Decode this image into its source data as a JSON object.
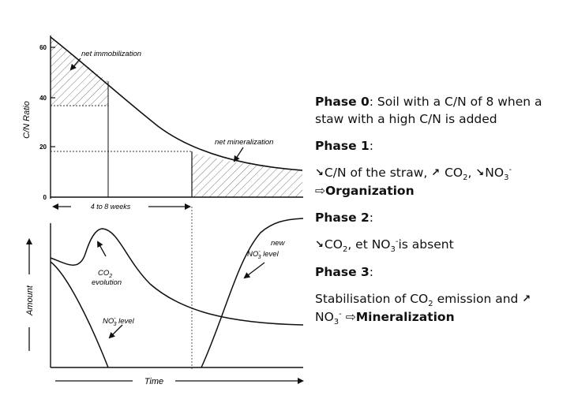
{
  "top_chart": {
    "y_axis_label": "C/N Ratio",
    "y_ticks": [
      "60",
      "40",
      "20",
      "0"
    ],
    "net_immobilization": "net immobilization",
    "net_mineralization": "net mineralization",
    "duration": "4 to 8 weeks"
  },
  "bottom_chart": {
    "y_axis_label": "Amount",
    "x_axis_label": "Time",
    "co2_label": "CO",
    "co2_sub": "2",
    "co2_label_2": "evolution",
    "no3_label_prefix": "NO",
    "no3_sub": "3",
    "no3_sup": "-",
    "no3_label_suffix": "level",
    "new_label": "new",
    "new_no3_prefix": "NO",
    "new_no3_sub": "3",
    "new_no3_sup": "-",
    "new_no3_suffix": "level"
  },
  "phases": {
    "p0_title": "Phase 0",
    "p0_text": ": Soil with a C/N of 8 when a staw with  a high C/N is added",
    "p1_title": "Phase 1",
    "p1_colon": ":",
    "p1_t1": "C/N of the straw, ",
    "p1_co2": "CO",
    "p1_co2_sub": "2",
    "p1_comma": ", ",
    "p1_no3": "NO",
    "p1_no3_sub": "3",
    "p1_no3_sup": "-",
    "p1_result": "Organization",
    "p2_title": "Phase 2",
    "p2_colon": ":",
    "p2_co2": "CO",
    "p2_co2_sub": "2",
    "p2_mid": ", et  NO",
    "p2_no3_sub": "3",
    "p2_no3_sup": "-",
    "p2_end": "is absent",
    "p3_title": "Phase 3",
    "p3_colon": ":",
    "p3_t1": "Stabilisation of CO",
    "p3_co2_sub": "2",
    "p3_t2": " emission and ",
    "p3_no3": "NO",
    "p3_no3_sub": "3",
    "p3_no3_sup": "-",
    "p3_result": "Mineralization"
  },
  "symbols": {
    "down_arrow": "↘",
    "up_arrow": "↗",
    "implies": "⇨"
  }
}
